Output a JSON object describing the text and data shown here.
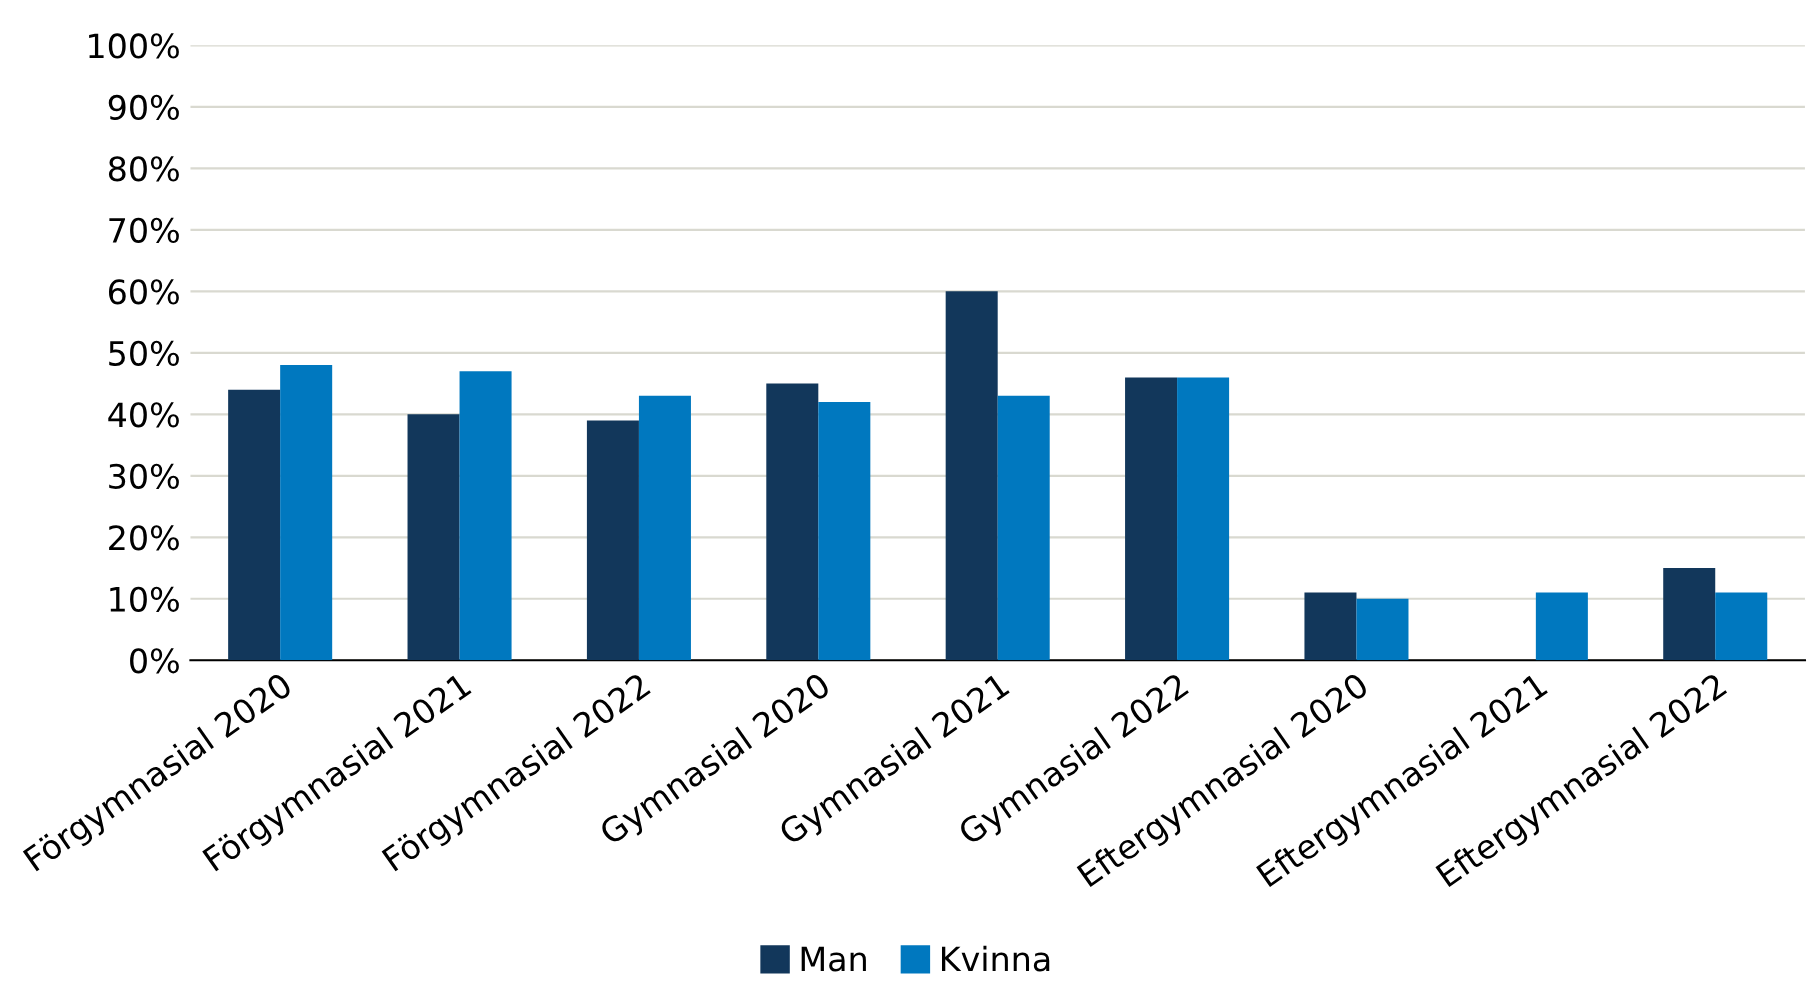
{
  "chart_data": {
    "type": "bar",
    "categories": [
      "Förgymnasial 2020",
      "Förgymnasial 2021",
      "Förgymnasial 2022",
      "Gymnasial 2020",
      "Gymnasial 2021",
      "Gymnasial 2022",
      "Eftergymnasial 2020",
      "Eftergymnasial 2021",
      "Eftergymnasial 2022"
    ],
    "series": [
      {
        "name": "Man",
        "color": "#12375b",
        "values": [
          44,
          40,
          39,
          45,
          60,
          46,
          11,
          null,
          15
        ]
      },
      {
        "name": "Kvinna",
        "color": "#0078bf",
        "values": [
          48,
          47,
          43,
          42,
          43,
          46,
          10,
          11,
          11
        ]
      }
    ],
    "ylim": [
      0,
      100
    ],
    "yticks": [
      {
        "value": 0,
        "label": "0%"
      },
      {
        "value": 10,
        "label": "10%"
      },
      {
        "value": 20,
        "label": "20%"
      },
      {
        "value": 30,
        "label": "30%"
      },
      {
        "value": 40,
        "label": "40%"
      },
      {
        "value": 50,
        "label": "50%"
      },
      {
        "value": 60,
        "label": "60%"
      },
      {
        "value": 70,
        "label": "70%"
      },
      {
        "value": 80,
        "label": "80%"
      },
      {
        "value": 90,
        "label": "90%"
      },
      {
        "value": 100,
        "label": "100%"
      }
    ],
    "grid": "y",
    "legend": "bottom"
  }
}
